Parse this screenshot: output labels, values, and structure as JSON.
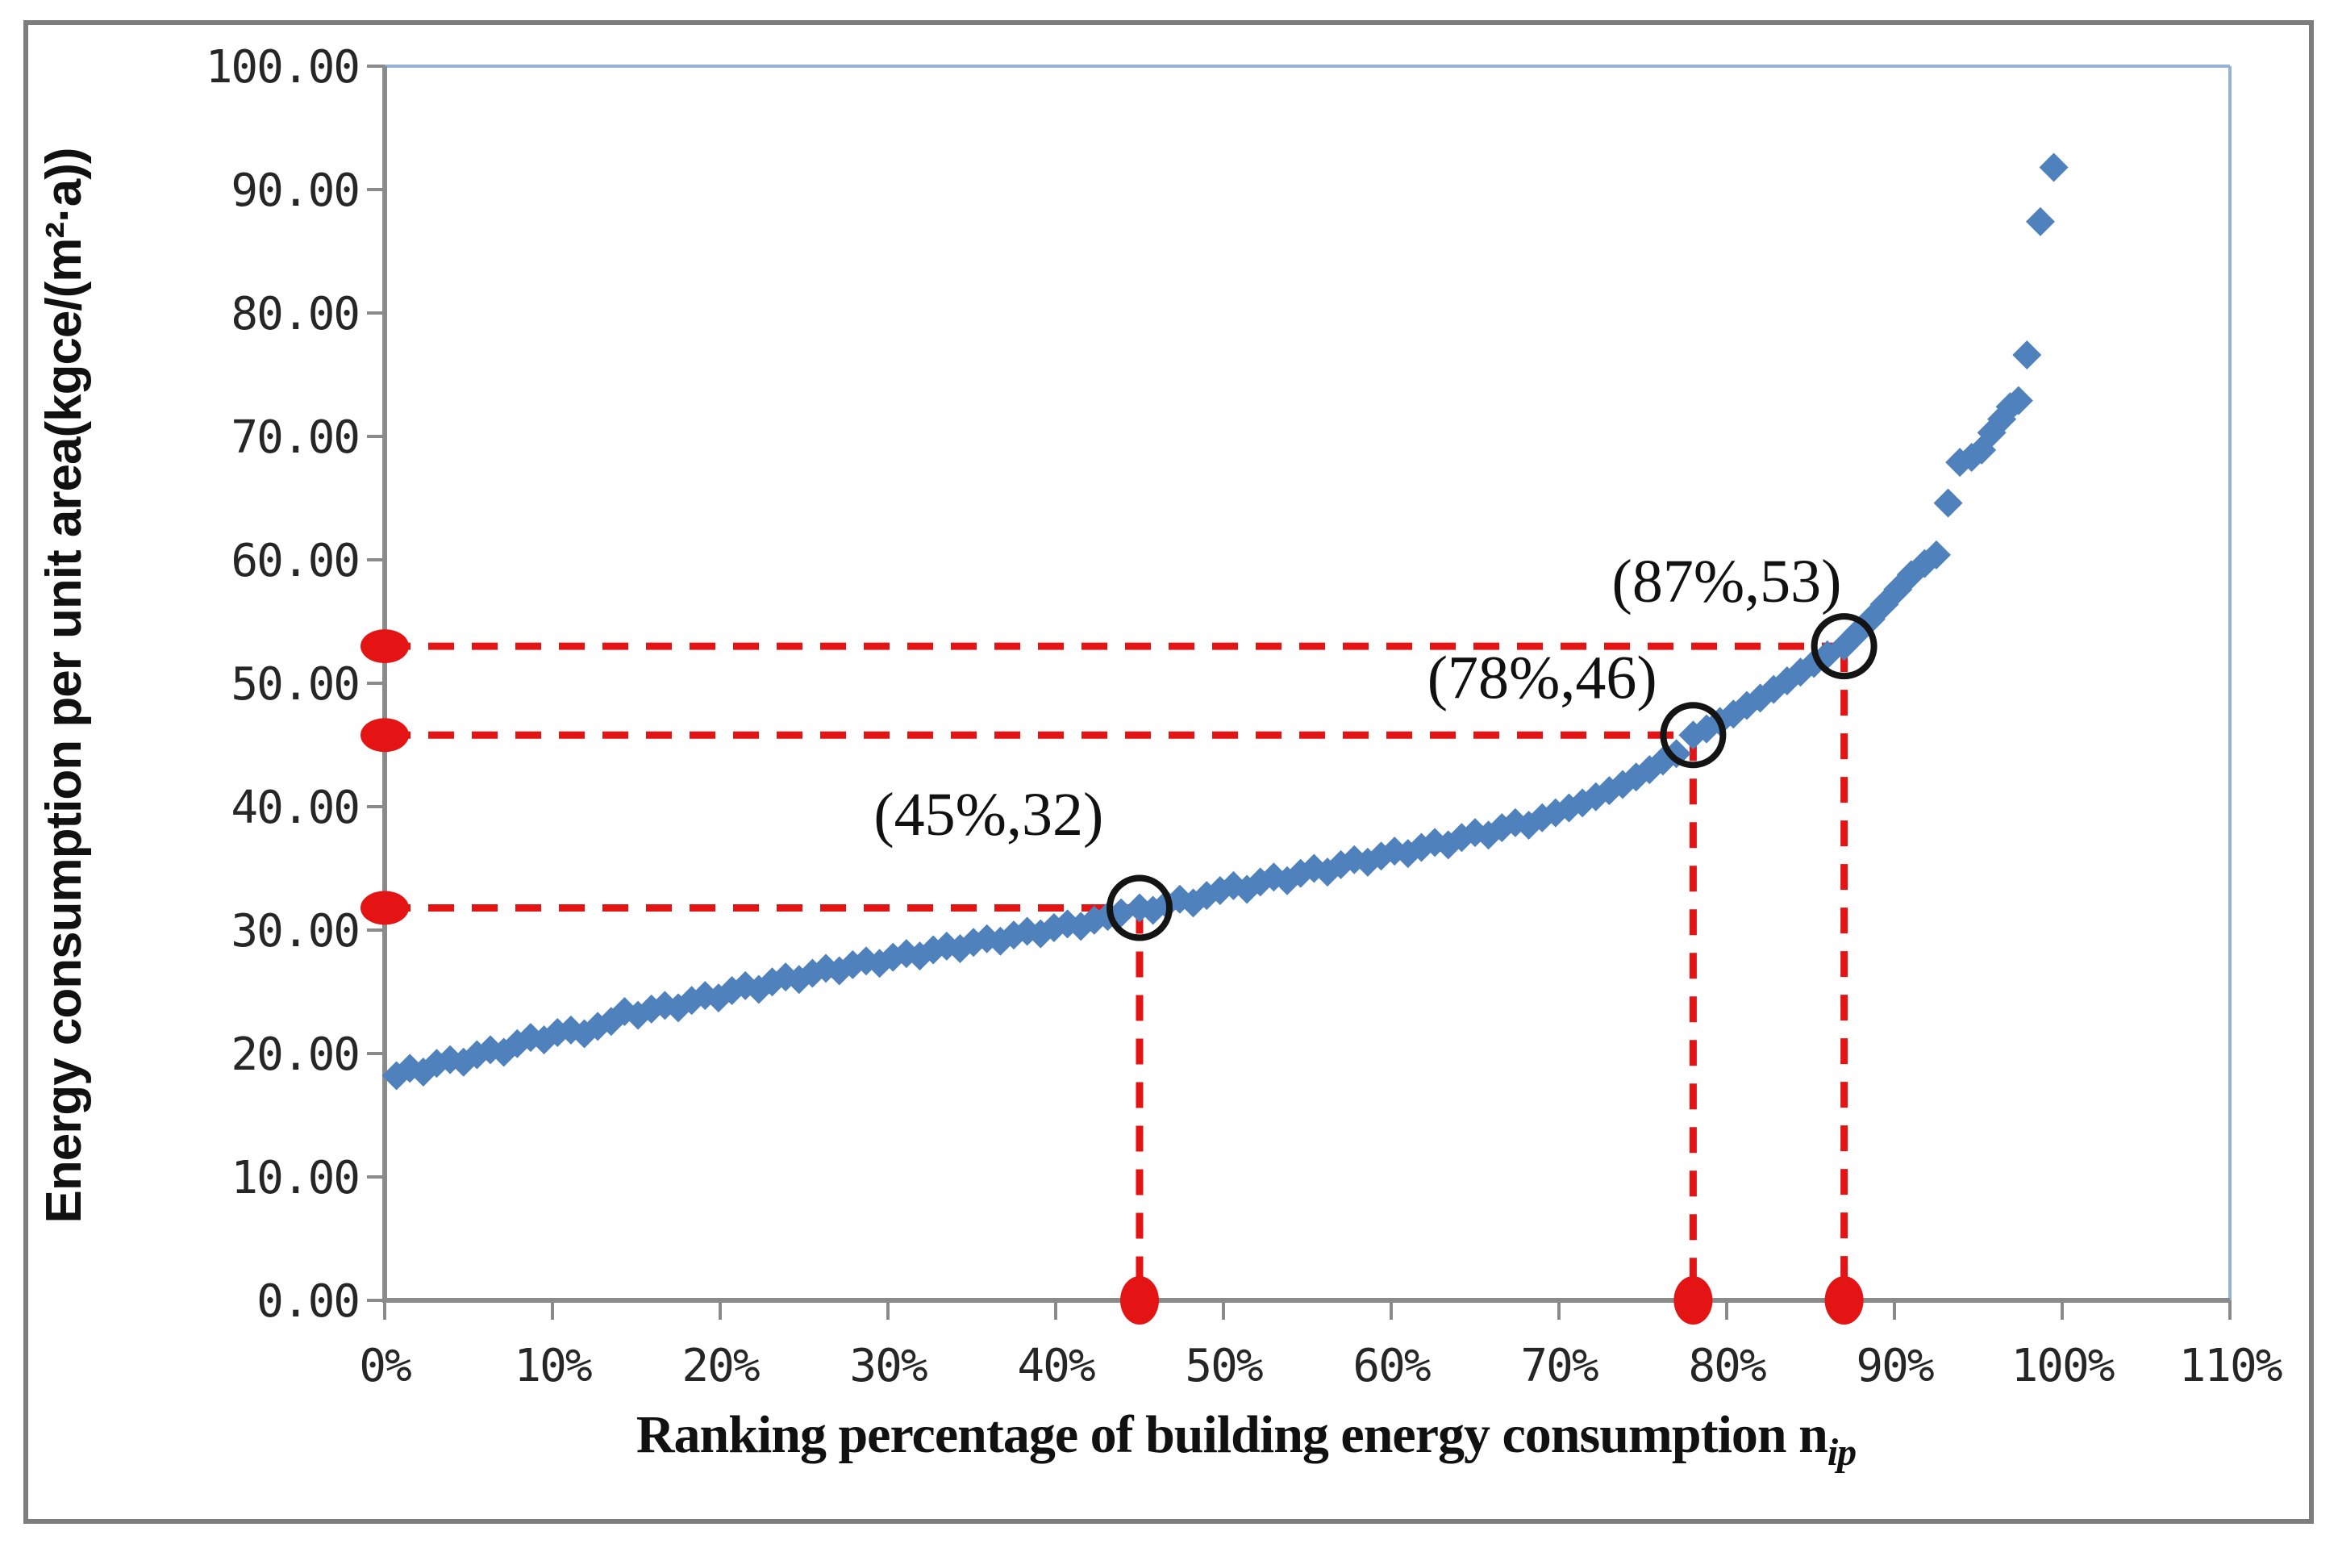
{
  "figure": {
    "description": "Scatter chart of building energy consumption ranking curve with three highlighted quantile points",
    "legend": "none",
    "gridlines": false
  },
  "colors": {
    "background": "#ffffff",
    "frame_gray": "#7d7d7d",
    "axis_gray": "#8a8a8a",
    "plot_border_blue": "#95b3d7",
    "marker_blue": "#4f81bd",
    "highlight_red": "#e51414",
    "circle_black": "#141414",
    "tick_text": "#262626",
    "title_text": "#111111"
  },
  "chart_data": {
    "type": "scatter",
    "title": "",
    "xlabel_main": "Ranking percentage of building energy consumption n",
    "xlabel_sub": "ip",
    "ylabel": "Energy consumption per unit area(kgce/(m²·a))",
    "xlim": [
      0,
      110
    ],
    "ylim": [
      0,
      100
    ],
    "grid": false,
    "legend_position": "none",
    "x_ticks": [
      {
        "value": 0,
        "label": "0%"
      },
      {
        "value": 10,
        "label": "10%"
      },
      {
        "value": 20,
        "label": "20%"
      },
      {
        "value": 30,
        "label": "30%"
      },
      {
        "value": 40,
        "label": "40%"
      },
      {
        "value": 50,
        "label": "50%"
      },
      {
        "value": 60,
        "label": "60%"
      },
      {
        "value": 70,
        "label": "70%"
      },
      {
        "value": 80,
        "label": "80%"
      },
      {
        "value": 90,
        "label": "90%"
      },
      {
        "value": 100,
        "label": "100%"
      },
      {
        "value": 110,
        "label": "110%"
      }
    ],
    "y_ticks": [
      {
        "value": 100,
        "label": "100.00"
      },
      {
        "value": 90,
        "label": "90.00"
      },
      {
        "value": 80,
        "label": "80.00"
      },
      {
        "value": 70,
        "label": "70.00"
      },
      {
        "value": 60,
        "label": "60.00"
      },
      {
        "value": 50,
        "label": "50.00"
      },
      {
        "value": 40,
        "label": "40.00"
      },
      {
        "value": 30,
        "label": "30.00"
      },
      {
        "value": 20,
        "label": "20.00"
      },
      {
        "value": 10,
        "label": "10.00"
      },
      {
        "value": 0,
        "label": "0.00"
      }
    ],
    "series": [
      {
        "name": "building-energy-ranking-curve",
        "marker": "diamond",
        "color": "#4f81bd",
        "points": [
          [
            0.7,
            18.2
          ],
          [
            1.5,
            18.8
          ],
          [
            2.3,
            18.5
          ],
          [
            3.1,
            19.2
          ],
          [
            3.9,
            19.5
          ],
          [
            4.7,
            19.3
          ],
          [
            5.5,
            19.9
          ],
          [
            6.3,
            20.3
          ],
          [
            7.1,
            20.1
          ],
          [
            7.9,
            20.8
          ],
          [
            8.7,
            21.3
          ],
          [
            9.5,
            21.1
          ],
          [
            10.3,
            21.7
          ],
          [
            11.1,
            21.9
          ],
          [
            11.9,
            21.6
          ],
          [
            12.7,
            22.2
          ],
          [
            13.5,
            22.6
          ],
          [
            14.3,
            23.4
          ],
          [
            15.1,
            23.1
          ],
          [
            15.9,
            23.6
          ],
          [
            16.7,
            23.9
          ],
          [
            17.5,
            23.7
          ],
          [
            18.3,
            24.3
          ],
          [
            19.1,
            24.7
          ],
          [
            19.9,
            24.5
          ],
          [
            20.7,
            25.1
          ],
          [
            21.5,
            25.5
          ],
          [
            22.3,
            25.2
          ],
          [
            23.1,
            25.8
          ],
          [
            23.9,
            26.2
          ],
          [
            24.7,
            26.0
          ],
          [
            25.5,
            26.5
          ],
          [
            26.3,
            26.9
          ],
          [
            27.1,
            26.7
          ],
          [
            27.9,
            27.2
          ],
          [
            28.7,
            27.5
          ],
          [
            29.5,
            27.3
          ],
          [
            30.3,
            27.8
          ],
          [
            31.1,
            28.1
          ],
          [
            31.9,
            27.9
          ],
          [
            32.7,
            28.4
          ],
          [
            33.5,
            28.7
          ],
          [
            34.3,
            28.5
          ],
          [
            35.1,
            29.0
          ],
          [
            35.9,
            29.3
          ],
          [
            36.7,
            29.1
          ],
          [
            37.5,
            29.6
          ],
          [
            38.3,
            29.9
          ],
          [
            39.1,
            29.7
          ],
          [
            39.9,
            30.2
          ],
          [
            40.7,
            30.5
          ],
          [
            41.5,
            30.3
          ],
          [
            42.3,
            30.8
          ],
          [
            43.1,
            31.1
          ],
          [
            43.9,
            31.4
          ],
          [
            45,
            31.8
          ],
          [
            45.8,
            31.6
          ],
          [
            46.6,
            32.1
          ],
          [
            47.4,
            32.5
          ],
          [
            48.2,
            32.2
          ],
          [
            49,
            32.8
          ],
          [
            49.8,
            33.2
          ],
          [
            50.6,
            33.6
          ],
          [
            51.4,
            33.3
          ],
          [
            52.2,
            33.9
          ],
          [
            53,
            34.3
          ],
          [
            53.8,
            34.0
          ],
          [
            54.6,
            34.6
          ],
          [
            55.4,
            35.0
          ],
          [
            56.2,
            34.7
          ],
          [
            57,
            35.3
          ],
          [
            57.8,
            35.7
          ],
          [
            58.6,
            35.5
          ],
          [
            59.4,
            36.0
          ],
          [
            60.2,
            36.4
          ],
          [
            61,
            36.2
          ],
          [
            61.8,
            36.7
          ],
          [
            62.6,
            37.1
          ],
          [
            63.4,
            36.9
          ],
          [
            64.2,
            37.5
          ],
          [
            65,
            37.9
          ],
          [
            65.8,
            37.7
          ],
          [
            66.6,
            38.3
          ],
          [
            67.4,
            38.7
          ],
          [
            68.2,
            38.5
          ],
          [
            69,
            39.1
          ],
          [
            69.8,
            39.5
          ],
          [
            70.6,
            39.9
          ],
          [
            71.4,
            40.3
          ],
          [
            72.2,
            40.8
          ],
          [
            73,
            41.3
          ],
          [
            73.8,
            41.8
          ],
          [
            74.6,
            42.4
          ],
          [
            75.4,
            43.0
          ],
          [
            76.2,
            43.7
          ],
          [
            77,
            44.3
          ],
          [
            78,
            45.8
          ],
          [
            78.8,
            46.3
          ],
          [
            79.6,
            46.9
          ],
          [
            80.4,
            47.5
          ],
          [
            81.2,
            48.2
          ],
          [
            82,
            48.8
          ],
          [
            82.8,
            49.5
          ],
          [
            83.6,
            50.2
          ],
          [
            84.4,
            50.9
          ],
          [
            85.2,
            51.6
          ],
          [
            86,
            52.3
          ],
          [
            87,
            53.0
          ],
          [
            87.8,
            54.1
          ],
          [
            88.6,
            55.2
          ],
          [
            89.4,
            56.4
          ],
          [
            90.2,
            57.6
          ],
          [
            91,
            58.8
          ],
          [
            91.8,
            59.7
          ],
          [
            92.5,
            60.4
          ],
          [
            93.2,
            64.6
          ],
          [
            93.9,
            67.9
          ],
          [
            94.6,
            68.3
          ],
          [
            95.2,
            68.9
          ],
          [
            95.8,
            70.3
          ],
          [
            96.4,
            71.4
          ],
          [
            96.9,
            72.4
          ],
          [
            97.4,
            72.9
          ],
          [
            97.9,
            76.6
          ],
          [
            98.7,
            87.4
          ],
          [
            99.5,
            91.8
          ]
        ]
      }
    ],
    "annotations": [
      {
        "label": "(45%,32)",
        "x": 45,
        "y": 31.8,
        "label_x": 36.0,
        "label_y": 37.7
      },
      {
        "label": "(78%,46)",
        "x": 78,
        "y": 45.8,
        "label_x": 69.0,
        "label_y": 48.8
      },
      {
        "label": "(87%,53)",
        "x": 87,
        "y": 53.0,
        "label_x": 80.0,
        "label_y": 56.6
      }
    ]
  }
}
